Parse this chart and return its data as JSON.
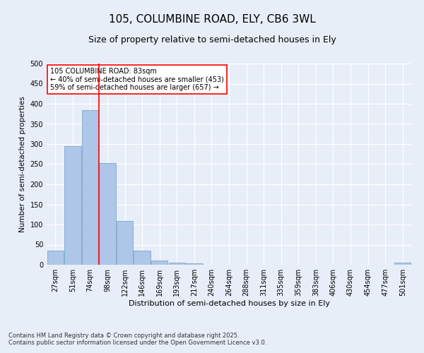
{
  "title": "105, COLUMBINE ROAD, ELY, CB6 3WL",
  "subtitle": "Size of property relative to semi-detached houses in Ely",
  "xlabel": "Distribution of semi-detached houses by size in Ely",
  "ylabel": "Number of semi-detached properties",
  "categories": [
    "27sqm",
    "51sqm",
    "74sqm",
    "98sqm",
    "122sqm",
    "146sqm",
    "169sqm",
    "193sqm",
    "217sqm",
    "240sqm",
    "264sqm",
    "288sqm",
    "311sqm",
    "335sqm",
    "359sqm",
    "383sqm",
    "406sqm",
    "430sqm",
    "454sqm",
    "477sqm",
    "501sqm"
  ],
  "values": [
    35,
    295,
    385,
    253,
    108,
    35,
    10,
    6,
    4,
    0,
    0,
    0,
    0,
    0,
    0,
    0,
    0,
    0,
    0,
    0,
    5
  ],
  "bar_color": "#aec6e8",
  "bar_edge_color": "#6a9fc8",
  "vline_x_index": 2.5,
  "vline_color": "red",
  "annotation_text": "105 COLUMBINE ROAD: 83sqm\n← 40% of semi-detached houses are smaller (453)\n59% of semi-detached houses are larger (657) →",
  "annotation_box_color": "white",
  "annotation_box_edge_color": "red",
  "ylim": [
    0,
    500
  ],
  "yticks": [
    0,
    50,
    100,
    150,
    200,
    250,
    300,
    350,
    400,
    450,
    500
  ],
  "background_color": "#e8eef8",
  "plot_background_color": "#e8eef8",
  "footer": "Contains HM Land Registry data © Crown copyright and database right 2025.\nContains public sector information licensed under the Open Government Licence v3.0.",
  "title_fontsize": 11,
  "subtitle_fontsize": 9,
  "xlabel_fontsize": 8,
  "ylabel_fontsize": 7.5,
  "tick_fontsize": 7,
  "footer_fontsize": 6,
  "annotation_fontsize": 7
}
